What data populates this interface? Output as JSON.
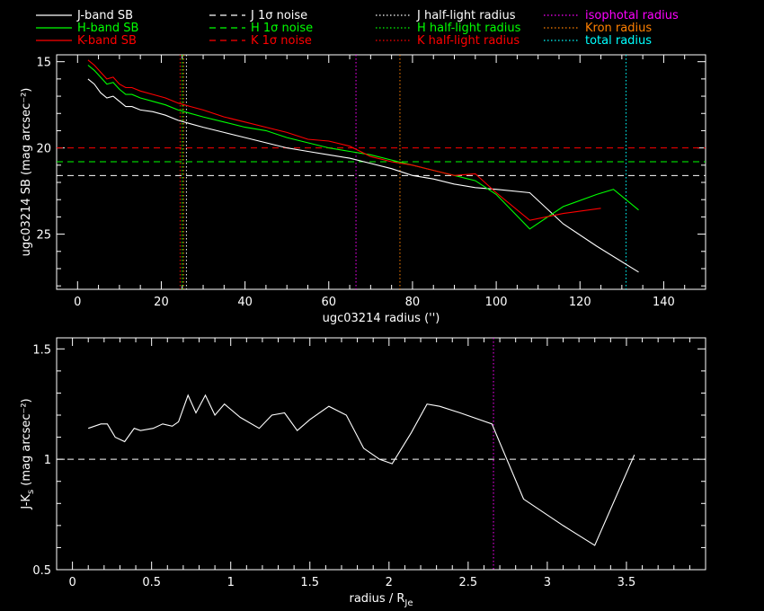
{
  "legend": [
    {
      "label": "J-band SB",
      "color": "#ffffff",
      "style": "solid"
    },
    {
      "label": "H-band SB",
      "color": "#00ff00",
      "style": "solid"
    },
    {
      "label": "K-band SB",
      "color": "#ff0000",
      "style": "solid"
    },
    {
      "label": "J 1σ noise",
      "color": "#ffffff",
      "style": "dashed"
    },
    {
      "label": "H 1σ noise",
      "color": "#00ff00",
      "style": "dashed"
    },
    {
      "label": "K 1σ noise",
      "color": "#ff0000",
      "style": "dashed"
    },
    {
      "label": "J half-light radius",
      "color": "#ffffff",
      "style": "dotted"
    },
    {
      "label": "H half-light radius",
      "color": "#00ff00",
      "style": "dotted"
    },
    {
      "label": "K half-light radius",
      "color": "#ff0000",
      "style": "dotted"
    },
    {
      "label": "isophotal radius",
      "color": "#ff00ff",
      "style": "dotted",
      "text_color": "#ff00ff"
    },
    {
      "label": "Kron radius",
      "color": "#ff8000",
      "style": "dotted",
      "text_color": "#ff8000"
    },
    {
      "label": "total radius",
      "color": "#00ffff",
      "style": "dotted",
      "text_color": "#00ffff"
    }
  ],
  "chart_data": [
    {
      "type": "line",
      "xlabel": "ugc03214 radius ('')",
      "ylabel": "ugc03214 SB (mag arcsec⁻²)",
      "xlim": [
        -5,
        150
      ],
      "ylim": [
        28.2,
        14.6
      ],
      "xticks": [
        0,
        20,
        40,
        60,
        80,
        100,
        120,
        140
      ],
      "yticks": [
        15,
        20,
        25
      ],
      "series": [
        {
          "name": "J-band SB",
          "color": "#ffffff",
          "x": [
            2.5,
            4,
            5.5,
            7,
            8.5,
            10,
            11.5,
            13,
            15,
            18,
            21,
            24,
            27,
            30,
            35,
            40,
            45,
            50,
            55,
            60,
            65,
            70,
            75,
            80,
            85,
            90,
            95,
            100,
            108,
            116,
            124,
            134
          ],
          "y": [
            16.0,
            16.3,
            16.8,
            17.1,
            17.0,
            17.3,
            17.6,
            17.6,
            17.8,
            17.9,
            18.1,
            18.4,
            18.6,
            18.8,
            19.1,
            19.4,
            19.7,
            20.0,
            20.2,
            20.4,
            20.6,
            20.9,
            21.2,
            21.6,
            21.8,
            22.1,
            22.3,
            22.4,
            22.6,
            24.4,
            25.7,
            27.2
          ]
        },
        {
          "name": "H-band SB",
          "color": "#00ff00",
          "x": [
            2.5,
            4,
            5.5,
            7,
            8.5,
            10,
            11.5,
            13,
            15,
            18,
            21,
            24,
            27,
            30,
            35,
            40,
            45,
            50,
            55,
            60,
            65,
            70,
            75,
            80,
            85,
            90,
            95,
            100,
            108,
            116,
            124,
            128,
            134
          ],
          "y": [
            15.2,
            15.5,
            15.9,
            16.3,
            16.2,
            16.6,
            16.9,
            16.9,
            17.1,
            17.3,
            17.5,
            17.8,
            18.0,
            18.2,
            18.5,
            18.8,
            19.0,
            19.4,
            19.7,
            20.0,
            20.2,
            20.4,
            20.7,
            21.0,
            21.3,
            21.6,
            21.9,
            22.7,
            24.7,
            23.4,
            22.7,
            22.4,
            23.6
          ]
        },
        {
          "name": "K-band SB",
          "color": "#ff0000",
          "x": [
            2.5,
            4,
            5.5,
            7,
            8.5,
            10,
            11.5,
            13,
            15,
            18,
            21,
            24,
            27,
            30,
            35,
            40,
            45,
            50,
            55,
            60,
            65,
            70,
            75,
            80,
            85,
            90,
            95,
            100,
            108,
            116,
            125
          ],
          "y": [
            14.9,
            15.2,
            15.6,
            16.0,
            15.9,
            16.3,
            16.5,
            16.5,
            16.7,
            16.9,
            17.1,
            17.4,
            17.6,
            17.8,
            18.2,
            18.5,
            18.8,
            19.1,
            19.5,
            19.6,
            19.9,
            20.5,
            20.8,
            21.0,
            21.3,
            21.6,
            21.5,
            22.6,
            24.2,
            23.8,
            23.5
          ]
        }
      ],
      "hlines": [
        {
          "label": "J 1σ noise",
          "y": 21.6,
          "color": "#ffffff"
        },
        {
          "label": "H 1σ noise",
          "y": 20.8,
          "color": "#00ff00"
        },
        {
          "label": "K 1σ noise",
          "y": 20.0,
          "color": "#ff0000"
        }
      ],
      "vlines": [
        {
          "label": "J half-light radius",
          "x": 26.0,
          "color": "#ffffff"
        },
        {
          "label": "H half-light radius",
          "x": 25.0,
          "color": "#00ff00"
        },
        {
          "label": "K half-light radius",
          "x": 24.5,
          "color": "#ff0000"
        },
        {
          "label": "Kron radius",
          "x": 25.3,
          "color": "#ff8000"
        },
        {
          "label": "isophotal radius",
          "x": 66.5,
          "color": "#ff00ff"
        },
        {
          "label": "Kron radius",
          "x": 77.0,
          "color": "#ff8000"
        },
        {
          "label": "total radius",
          "x": 131.0,
          "color": "#00ffff"
        }
      ]
    },
    {
      "type": "line",
      "xlabel": "radius / R",
      "xlabel_sub": "Je",
      "ylabel": "J-K",
      "ylabel_sub": "s",
      "ylabel_tail": " (mag arcsec⁻²)",
      "xlim": [
        -0.1,
        4.0
      ],
      "ylim": [
        0.5,
        1.55
      ],
      "xticks": [
        0,
        0.5,
        1,
        1.5,
        2,
        2.5,
        3,
        3.5
      ],
      "xtick_labels": [
        "0",
        "0.5",
        "1",
        "1.5",
        "2",
        "2.5",
        "3",
        "3.5"
      ],
      "yticks": [
        0.5,
        1,
        1.5
      ],
      "ytick_labels": [
        "0.5",
        "1",
        "1.5"
      ],
      "series": [
        {
          "name": "J-K",
          "color": "#ffffff",
          "x": [
            0.1,
            0.18,
            0.22,
            0.27,
            0.33,
            0.39,
            0.43,
            0.51,
            0.57,
            0.63,
            0.67,
            0.73,
            0.78,
            0.84,
            0.9,
            0.96,
            1.06,
            1.18,
            1.26,
            1.34,
            1.42,
            1.5,
            1.62,
            1.73,
            1.84,
            1.94,
            2.02,
            2.14,
            2.24,
            2.32,
            2.45,
            2.65,
            2.85,
            3.1,
            3.3,
            3.55
          ],
          "y": [
            1.14,
            1.16,
            1.16,
            1.1,
            1.08,
            1.14,
            1.13,
            1.14,
            1.16,
            1.15,
            1.17,
            1.29,
            1.21,
            1.29,
            1.2,
            1.25,
            1.19,
            1.14,
            1.2,
            1.21,
            1.13,
            1.18,
            1.24,
            1.2,
            1.05,
            1.0,
            0.98,
            1.12,
            1.25,
            1.24,
            1.21,
            1.16,
            0.82,
            0.7,
            0.61,
            1.02
          ]
        }
      ],
      "hlines": [
        {
          "y": 1.0,
          "color": "#ffffff"
        }
      ],
      "vlines": [
        {
          "label": "isophotal radius",
          "x": 2.66,
          "color": "#ff00ff"
        }
      ]
    }
  ]
}
